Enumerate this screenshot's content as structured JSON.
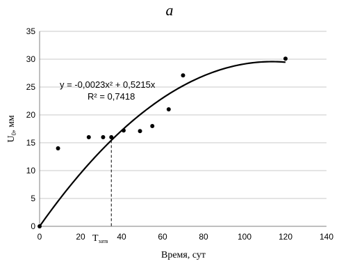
{
  "chart_data": {
    "type": "scatter",
    "panel_label": "а",
    "xlabel": "Время, сут",
    "ylabel": "U0, мм",
    "ylabel_main": "U",
    "ylabel_sub": "0",
    "ylabel_unit": ", мм",
    "xlim": [
      0,
      140
    ],
    "ylim": [
      0,
      35
    ],
    "xticks": [
      "0",
      "20",
      "40",
      "60",
      "80",
      "100",
      "120",
      "140"
    ],
    "yticks": [
      "0",
      "5",
      "10",
      "15",
      "20",
      "25",
      "30",
      "35"
    ],
    "grid": "horizontal",
    "points": [
      {
        "x": 0,
        "y": 0
      },
      {
        "x": 9,
        "y": 14
      },
      {
        "x": 24,
        "y": 16
      },
      {
        "x": 31,
        "y": 16
      },
      {
        "x": 35,
        "y": 16
      },
      {
        "x": 41,
        "y": 17.2
      },
      {
        "x": 49,
        "y": 17.1
      },
      {
        "x": 55,
        "y": 18
      },
      {
        "x": 63,
        "y": 21
      },
      {
        "x": 70,
        "y": 27.1
      },
      {
        "x": 120,
        "y": 30.1
      }
    ],
    "trendline": {
      "a": -0.0023,
      "b": 0.5215,
      "x_range": [
        0,
        120
      ],
      "equation": "y = -0,0023x² + 0,5215x",
      "r_squared": "R² = 0,7418"
    },
    "annotation": {
      "x": 35,
      "label_main": "T",
      "label_sub": "затв"
    }
  }
}
